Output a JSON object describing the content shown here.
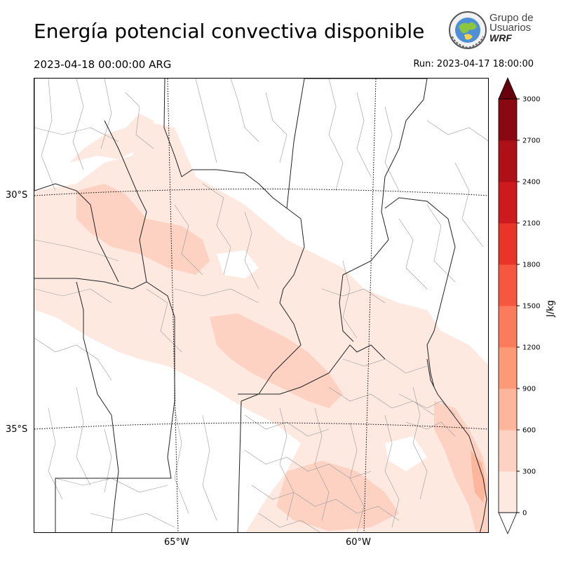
{
  "title": "Energía potencial convectiva disponible",
  "valid_time": "2023-04-18 00:00:00 ARG",
  "run_time": "Run: 2023-04-17 18:00:00",
  "logo": {
    "line1": "Grupo de",
    "line2": "Usuarios",
    "line3": "WRF"
  },
  "lat_labels": [
    "30°S",
    "35°S"
  ],
  "lon_labels": [
    "65°W",
    "60°W"
  ],
  "colorbar": {
    "label": "J/kg",
    "ticks": [
      "0",
      "300",
      "600",
      "900",
      "1200",
      "1500",
      "1800",
      "2100",
      "2400",
      "2700",
      "3000"
    ],
    "colors": [
      "#fee9e1",
      "#fdd2c2",
      "#fcb69b",
      "#fc9a78",
      "#fb7c5c",
      "#f5573f",
      "#e83429",
      "#cc1a1f",
      "#ad1117",
      "#8a0812",
      "#67000d"
    ],
    "extend_color": "#67000d"
  }
}
